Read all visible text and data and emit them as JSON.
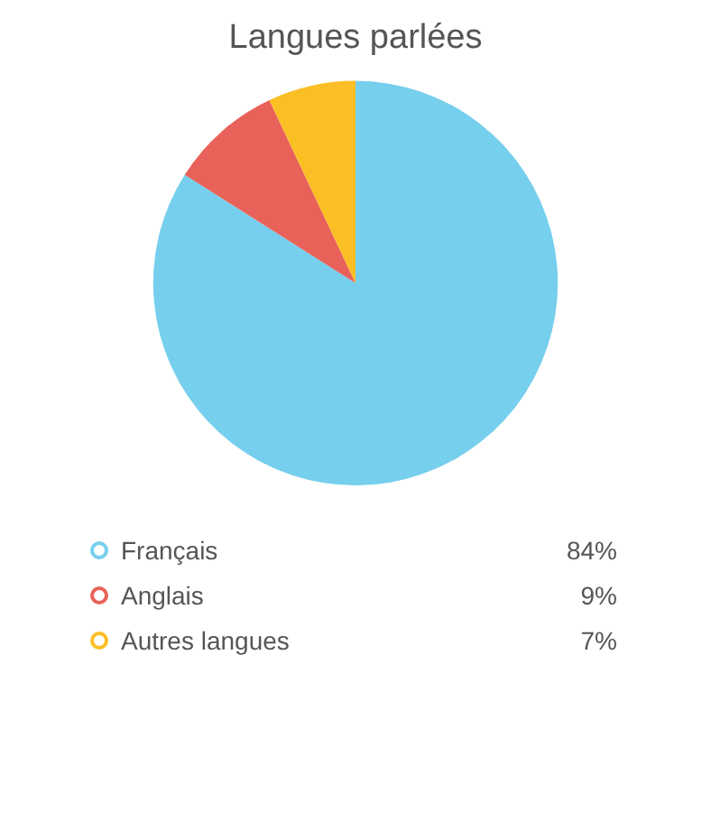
{
  "chart_data": {
    "type": "pie",
    "title": "Langues parlées",
    "categories": [
      "Français",
      "Anglais",
      "Autres langues"
    ],
    "values": [
      84,
      9,
      7
    ],
    "value_labels": [
      "84%",
      "9%",
      "7%"
    ],
    "colors": [
      "#76cfec",
      "#e8625a",
      "#fbbf26"
    ],
    "legend": "bottom"
  }
}
